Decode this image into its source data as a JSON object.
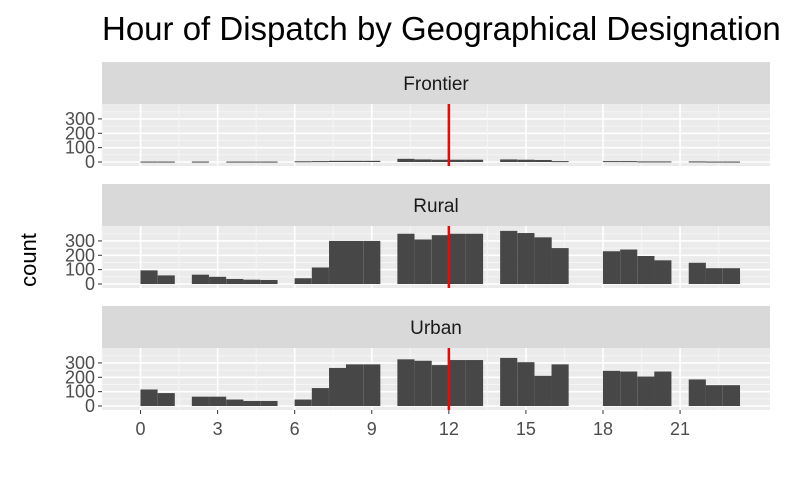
{
  "chart_data": {
    "type": "bar",
    "title": "Hour of Dispatch by Geographical Designation",
    "xlabel": "",
    "ylabel": "count",
    "x_ticks": [
      0,
      3,
      6,
      9,
      12,
      15,
      18,
      21
    ],
    "y_ticks": [
      0,
      100,
      200,
      300
    ],
    "ylim": [
      0,
      390
    ],
    "xlim": [
      -1.5,
      24.5
    ],
    "reference_line": {
      "x": 12,
      "color": "#ff0000"
    },
    "bar_color": "#474747",
    "panel_background": "#ebebeb",
    "strip_background": "#d9d9d9",
    "grid": true,
    "facets": [
      {
        "label": "Frontier",
        "bars": [
          {
            "x": 0.33,
            "y": 3
          },
          {
            "x": 1.0,
            "y": 3
          },
          {
            "x": 2.33,
            "y": 3
          },
          {
            "x": 3.67,
            "y": 3
          },
          {
            "x": 4.33,
            "y": 3
          },
          {
            "x": 5.0,
            "y": 3
          },
          {
            "x": 6.33,
            "y": 5
          },
          {
            "x": 7.0,
            "y": 6
          },
          {
            "x": 7.67,
            "y": 8
          },
          {
            "x": 8.33,
            "y": 8
          },
          {
            "x": 9.0,
            "y": 8
          },
          {
            "x": 10.33,
            "y": 22
          },
          {
            "x": 11.0,
            "y": 18
          },
          {
            "x": 11.67,
            "y": 16
          },
          {
            "x": 12.33,
            "y": 16
          },
          {
            "x": 13.0,
            "y": 16
          },
          {
            "x": 14.33,
            "y": 18
          },
          {
            "x": 15.0,
            "y": 16
          },
          {
            "x": 15.67,
            "y": 14
          },
          {
            "x": 16.33,
            "y": 6
          },
          {
            "x": 18.33,
            "y": 6
          },
          {
            "x": 19.0,
            "y": 6
          },
          {
            "x": 19.67,
            "y": 4
          },
          {
            "x": 20.33,
            "y": 4
          },
          {
            "x": 21.67,
            "y": 4
          },
          {
            "x": 22.33,
            "y": 3
          },
          {
            "x": 23.0,
            "y": 3
          }
        ]
      },
      {
        "label": "Rural",
        "bars": [
          {
            "x": 0.33,
            "y": 95
          },
          {
            "x": 1.0,
            "y": 60
          },
          {
            "x": 2.33,
            "y": 65
          },
          {
            "x": 3.0,
            "y": 50
          },
          {
            "x": 3.67,
            "y": 35
          },
          {
            "x": 4.33,
            "y": 30
          },
          {
            "x": 5.0,
            "y": 28
          },
          {
            "x": 6.33,
            "y": 40
          },
          {
            "x": 7.0,
            "y": 115
          },
          {
            "x": 7.67,
            "y": 300
          },
          {
            "x": 8.33,
            "y": 300
          },
          {
            "x": 9.0,
            "y": 300
          },
          {
            "x": 10.33,
            "y": 350
          },
          {
            "x": 11.0,
            "y": 310
          },
          {
            "x": 11.67,
            "y": 340
          },
          {
            "x": 12.33,
            "y": 350
          },
          {
            "x": 13.0,
            "y": 350
          },
          {
            "x": 14.33,
            "y": 370
          },
          {
            "x": 15.0,
            "y": 355
          },
          {
            "x": 15.67,
            "y": 325
          },
          {
            "x": 16.33,
            "y": 250
          },
          {
            "x": 18.33,
            "y": 228
          },
          {
            "x": 19.0,
            "y": 240
          },
          {
            "x": 19.67,
            "y": 195
          },
          {
            "x": 20.33,
            "y": 165
          },
          {
            "x": 21.67,
            "y": 148
          },
          {
            "x": 22.33,
            "y": 110
          },
          {
            "x": 23.0,
            "y": 110
          }
        ]
      },
      {
        "label": "Urban",
        "bars": [
          {
            "x": 0.33,
            "y": 115
          },
          {
            "x": 1.0,
            "y": 90
          },
          {
            "x": 2.33,
            "y": 65
          },
          {
            "x": 3.0,
            "y": 65
          },
          {
            "x": 3.67,
            "y": 45
          },
          {
            "x": 4.33,
            "y": 35
          },
          {
            "x": 5.0,
            "y": 35
          },
          {
            "x": 6.33,
            "y": 45
          },
          {
            "x": 7.0,
            "y": 125
          },
          {
            "x": 7.67,
            "y": 265
          },
          {
            "x": 8.33,
            "y": 290
          },
          {
            "x": 9.0,
            "y": 290
          },
          {
            "x": 10.33,
            "y": 325
          },
          {
            "x": 11.0,
            "y": 315
          },
          {
            "x": 11.67,
            "y": 285
          },
          {
            "x": 12.33,
            "y": 320
          },
          {
            "x": 13.0,
            "y": 320
          },
          {
            "x": 14.33,
            "y": 335
          },
          {
            "x": 15.0,
            "y": 305
          },
          {
            "x": 15.67,
            "y": 210
          },
          {
            "x": 16.33,
            "y": 290
          },
          {
            "x": 18.33,
            "y": 245
          },
          {
            "x": 19.0,
            "y": 240
          },
          {
            "x": 19.67,
            "y": 205
          },
          {
            "x": 20.33,
            "y": 240
          },
          {
            "x": 21.67,
            "y": 185
          },
          {
            "x": 22.33,
            "y": 145
          },
          {
            "x": 23.0,
            "y": 145
          }
        ]
      }
    ]
  }
}
